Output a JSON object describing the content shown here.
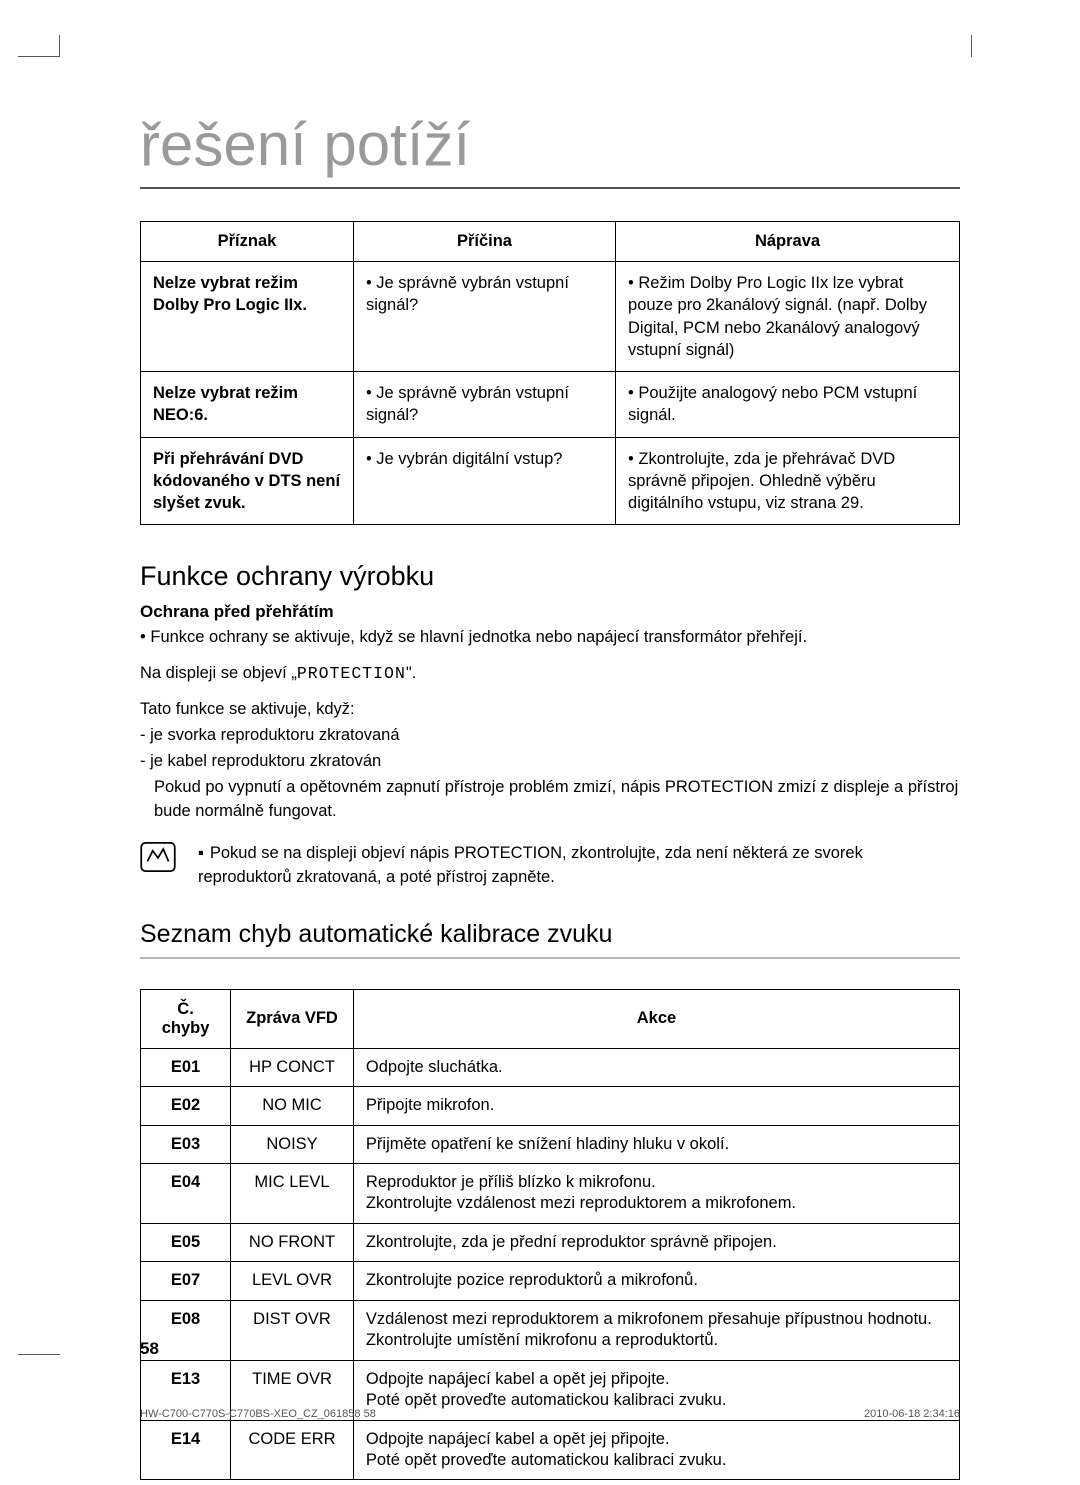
{
  "page_title": "řešení potíží",
  "trouble_table": {
    "headers": [
      "Příznak",
      "Příčina",
      "Náprava"
    ],
    "rows": [
      {
        "symptom": "Nelze vybrat režim Dolby Pro Logic IIx.",
        "cause": "• Je správně vybrán vstupní signál?",
        "remedy": "• Režim Dolby Pro Logic IIx lze vybrat pouze pro 2kanálový signál. (např. Dolby Digital, PCM nebo 2kanálový analogový vstupní signál)"
      },
      {
        "symptom": "Nelze vybrat režim NEO:6.",
        "cause": "• Je správně vybrán vstupní signál?",
        "remedy": "• Použijte analogový nebo PCM vstupní signál."
      },
      {
        "symptom": "Při přehrávání DVD kódovaného v DTS není slyšet zvuk.",
        "cause": "• Je vybrán digitální vstup?",
        "remedy": "• Zkontrolujte, zda je přehrávač DVD správně připojen. Ohledně výběru digitálního vstupu, viz strana 29."
      }
    ]
  },
  "protection": {
    "heading": "Funkce ochrany výrobku",
    "subhead": "Ochrana před přehřátím",
    "line1": "• Funkce ochrany se aktivuje, když se hlavní jednotka nebo napájecí transformátor přehřejí.",
    "line2_prefix": "Na displeji se objeví „",
    "line2_mono": "PROTECTION",
    "line2_suffix": "\".",
    "line3": "Tato funkce se aktivuje, když:",
    "line4": "- je svorka reproduktoru zkratovaná",
    "line5": "- je kabel reproduktoru zkratován",
    "line6": "Pokud po vypnutí a opětovném zapnutí přístroje problém zmizí, nápis PROTECTION zmizí z displeje a přístroj bude normálně fungovat."
  },
  "note_text": "Pokud se na displeji objeví nápis PROTECTION, zkontrolujte, zda není některá ze svorek reproduktorů zkratovaná, a poté přístroj zapněte.",
  "error_heading": "Seznam chyb automatické kalibrace zvuku",
  "error_table": {
    "headers": [
      "Č. chyby",
      "Zpráva VFD",
      "Akce"
    ],
    "rows": [
      {
        "code": "E01",
        "msg": "HP CONCT",
        "action": "Odpojte sluchátka."
      },
      {
        "code": "E02",
        "msg": "NO MIC",
        "action": "Připojte mikrofon."
      },
      {
        "code": "E03",
        "msg": "NOISY",
        "action": "Přijměte opatření ke snížení hladiny hluku v okolí."
      },
      {
        "code": "E04",
        "msg": "MIC LEVL",
        "action": "Reproduktor je příliš blízko k mikrofonu.\nZkontrolujte vzdálenost mezi reproduktorem a mikrofonem."
      },
      {
        "code": "E05",
        "msg": "NO FRONT",
        "action": "Zkontrolujte, zda je přední reproduktor správně připojen."
      },
      {
        "code": "E07",
        "msg": "LEVL OVR",
        "action": "Zkontrolujte pozice reproduktorů a mikrofonů."
      },
      {
        "code": "E08",
        "msg": "DIST OVR",
        "action": "Vzdálenost mezi reproduktorem a mikrofonem přesahuje přípustnou hodnotu.\nZkontrolujte umístění mikrofonu a reproduktortů."
      },
      {
        "code": "E13",
        "msg": "TIME OVR",
        "action": "Odpojte napájecí kabel a opět jej připojte.\nPoté opět proveďte automatickou kalibraci zvuku."
      },
      {
        "code": "E14",
        "msg": "CODE ERR",
        "action": "Odpojte napájecí kabel a opět jej připojte.\nPoté opět proveďte automatickou kalibraci zvuku."
      }
    ]
  },
  "page_number": "58",
  "footer_left": "HW-C700-C770S-C770BS-XEO_CZ_061858   58",
  "footer_right": "2010-06-18   2:34:16"
}
